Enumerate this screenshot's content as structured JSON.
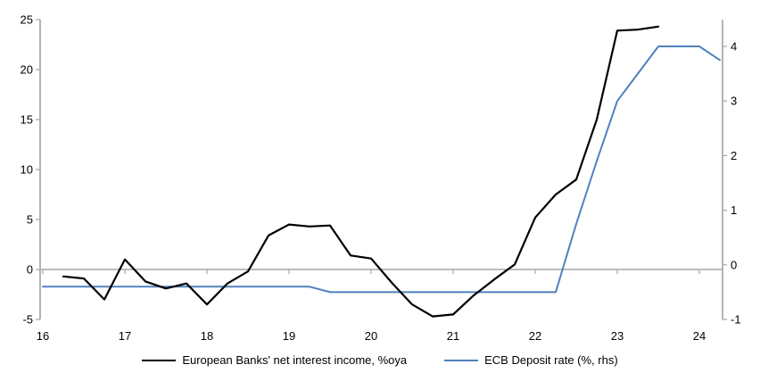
{
  "colors": {
    "background": "#ffffff",
    "axis": "#a6a6a6",
    "text": "#000000",
    "series_nii": "#000000",
    "series_ecb": "#4f81bd"
  },
  "chart_data": {
    "type": "line",
    "title": "",
    "grid": "off",
    "legend_position": "bottom-center",
    "x_axis": {
      "base": 16,
      "ticks": [
        16,
        17,
        18,
        19,
        20,
        21,
        22,
        23,
        24
      ]
    },
    "left_axis": {
      "label": "",
      "range": [
        -5,
        25
      ],
      "ticks": [
        25,
        20,
        15,
        10,
        5,
        0,
        -5
      ]
    },
    "right_axis": {
      "label": "",
      "range": [
        -1,
        4.49
      ],
      "ticks": [
        4,
        3,
        2,
        1,
        0,
        -1
      ]
    },
    "series": [
      {
        "name": "European Banks' net interest income, %oya",
        "axis": "left",
        "color": "#000000",
        "x": [
          16.25,
          16.5,
          16.75,
          17.0,
          17.25,
          17.5,
          17.75,
          18.0,
          18.25,
          18.5,
          18.75,
          19.0,
          19.25,
          19.5,
          19.75,
          20.0,
          20.25,
          20.5,
          20.75,
          21.0,
          21.25,
          21.5,
          21.75,
          22.0,
          22.25,
          22.5,
          22.75,
          23.0,
          23.25,
          23.5
        ],
        "values": [
          -0.7,
          -0.9,
          -3.0,
          1.0,
          -1.2,
          -1.9,
          -1.4,
          -3.5,
          -1.4,
          -0.2,
          3.4,
          4.5,
          4.3,
          4.4,
          1.4,
          1.1,
          -1.3,
          -3.5,
          -4.7,
          -4.5,
          -2.6,
          -1.0,
          0.5,
          5.2,
          7.5,
          9.0,
          15.0,
          23.9,
          24.0,
          24.3
        ]
      },
      {
        "name": "ECB Deposit rate (%, rhs)",
        "axis": "right",
        "color": "#4f81bd",
        "x": [
          16.0,
          16.25,
          16.5,
          16.75,
          17.0,
          17.25,
          17.5,
          17.75,
          18.0,
          18.25,
          18.5,
          18.75,
          19.0,
          19.25,
          19.5,
          19.75,
          20.0,
          20.25,
          20.5,
          20.75,
          21.0,
          21.25,
          21.5,
          21.75,
          22.0,
          22.25,
          22.5,
          22.75,
          23.0,
          23.25,
          23.5,
          23.75,
          24.0,
          24.25
        ],
        "values": [
          -0.4,
          -0.4,
          -0.4,
          -0.4,
          -0.4,
          -0.4,
          -0.4,
          -0.4,
          -0.4,
          -0.4,
          -0.4,
          -0.4,
          -0.4,
          -0.4,
          -0.5,
          -0.5,
          -0.5,
          -0.5,
          -0.5,
          -0.5,
          -0.5,
          -0.5,
          -0.5,
          -0.5,
          -0.5,
          -0.5,
          0.75,
          1.9,
          3.0,
          3.5,
          4.0,
          4.0,
          4.0,
          3.75
        ]
      }
    ]
  }
}
